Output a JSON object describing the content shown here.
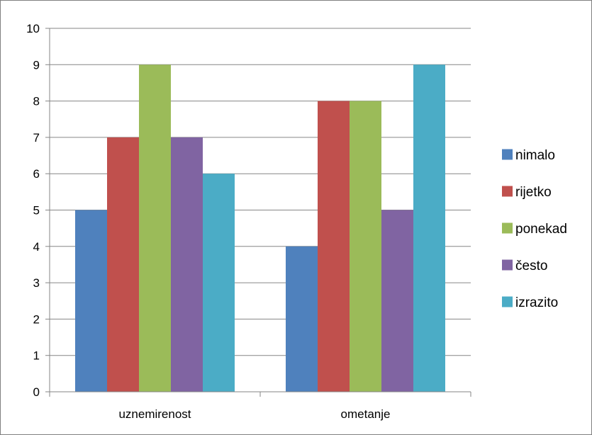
{
  "chart_data": {
    "type": "bar",
    "categories": [
      "uznemirenost",
      "ometanje"
    ],
    "series": [
      {
        "name": "nimalo",
        "values": [
          5,
          4
        ],
        "color": "#4F81BD"
      },
      {
        "name": "rijetko",
        "values": [
          7,
          8
        ],
        "color": "#C0504D"
      },
      {
        "name": "ponekad",
        "values": [
          9,
          8
        ],
        "color": "#9BBB59"
      },
      {
        "name": "često",
        "values": [
          7,
          5
        ],
        "color": "#8064A2"
      },
      {
        "name": "izrazito",
        "values": [
          6,
          9
        ],
        "color": "#4BACC6"
      }
    ],
    "ylim": [
      0,
      10
    ],
    "yticks": [
      "0",
      "1",
      "2",
      "3",
      "4",
      "5",
      "6",
      "7",
      "8",
      "9",
      "10"
    ],
    "grid": true,
    "legend": "right"
  }
}
